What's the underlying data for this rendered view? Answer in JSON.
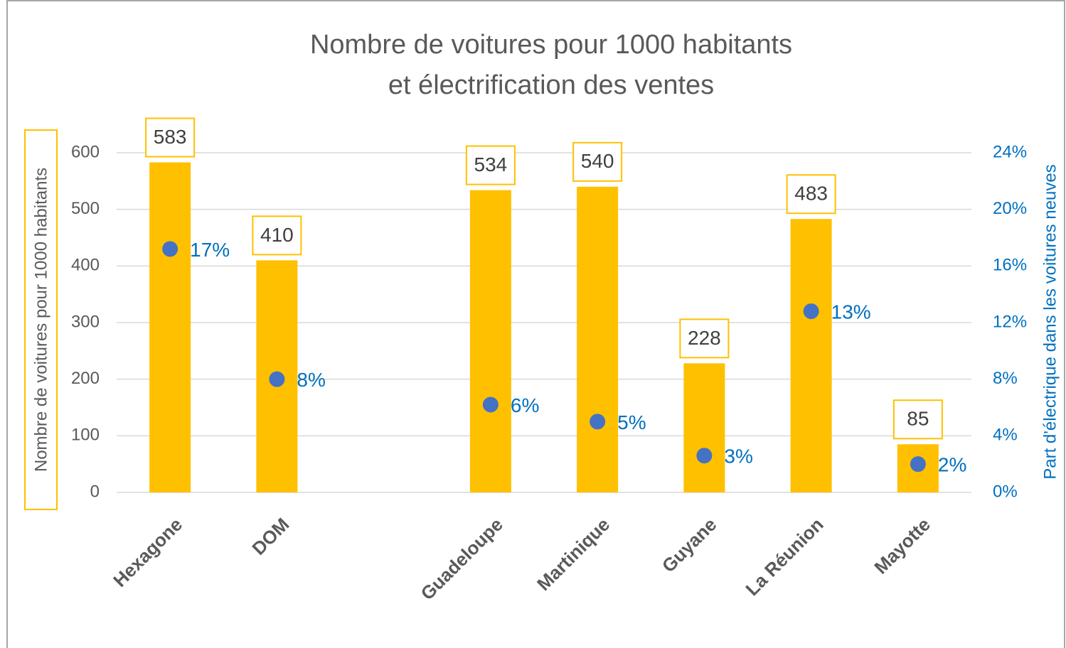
{
  "chart_data": {
    "type": "bar",
    "title": [
      "Nombre de voitures pour 1000 habitants",
      "et électrification des ventes"
    ],
    "y_label": "Nombre de voitures pour 1000 habitants",
    "y2_label": "Part d'électrique dans les voitures neuves",
    "categories": [
      "Hexagone",
      "DOM",
      null,
      "Guadeloupe",
      "Martinique",
      "Guyane",
      "La Réunion",
      "Mayotte"
    ],
    "series": [
      {
        "type": "bar",
        "color": "#ffc000",
        "values": [
          583,
          410,
          null,
          534,
          540,
          228,
          483,
          85
        ]
      },
      {
        "type": "scatter",
        "axis": "y2",
        "color": "#4472c4",
        "label_color": "#0070c0",
        "values": [
          17.2,
          8,
          null,
          6.2,
          5,
          2.6,
          12.8,
          2
        ],
        "value_labels": [
          "17%",
          "8%",
          null,
          "6%",
          "5%",
          "3%",
          "13%",
          "2%"
        ]
      }
    ],
    "ylim": [
      0,
      600
    ],
    "yticks": [
      0,
      100,
      200,
      300,
      400,
      500,
      600
    ],
    "y2lim": [
      0,
      24
    ],
    "y2ticks": [
      {
        "value": 0,
        "label": "0%"
      },
      {
        "value": 4,
        "label": "4%"
      },
      {
        "value": 8,
        "label": "8%"
      },
      {
        "value": 12,
        "label": "12%"
      },
      {
        "value": 16,
        "label": "16%"
      },
      {
        "value": 20,
        "label": "20%"
      },
      {
        "value": 24,
        "label": "24%"
      }
    ],
    "grid": true
  }
}
